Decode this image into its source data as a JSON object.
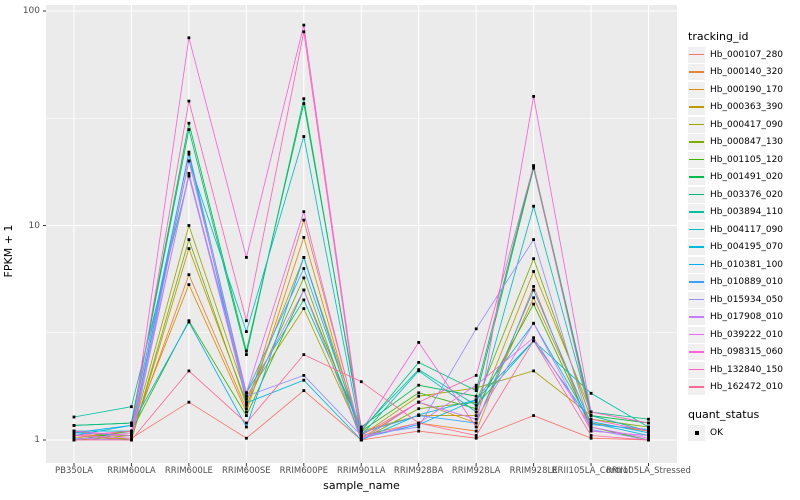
{
  "figure": {
    "background": "#ffffff",
    "panel_background": "#ebebeb",
    "grid_color": "#ffffff",
    "tick_text_color": "#4d4d4d",
    "axis_title_color": "#000000"
  },
  "axes": {
    "x_title": "sample_name",
    "y_title": "FPKM + 1",
    "y_tick_labels": [
      "1",
      "10",
      "100"
    ],
    "y_tick_values": [
      1,
      10,
      100
    ],
    "y_minor_values": [
      3.1623,
      31.623
    ]
  },
  "legend": {
    "tracking_title": "tracking_id",
    "quant_title": "quant_status",
    "quant_entries": [
      {
        "label": "OK",
        "marker": "black-square"
      }
    ]
  },
  "chart_data": {
    "type": "line",
    "title": "",
    "xlabel": "sample_name",
    "ylabel": "FPKM + 1",
    "y_scale": "log10",
    "ylim": [
      1,
      100
    ],
    "grid": true,
    "legend_position": "right",
    "point_marker": "small black square (quant_status OK)",
    "categories": [
      "PB350LA",
      "RRIM600LA",
      "RRIM600LE",
      "RRIM600SE",
      "RRIM600PE",
      "RRIM901LA",
      "RRIM928BA",
      "RRIM928LA",
      "RRIM928LE",
      "RRII105LA_Control",
      "RRII105LA_Stressed"
    ],
    "series": [
      {
        "name": "Hb_000107_280",
        "color": "#F8766D",
        "values": [
          1.0,
          1.02,
          1.5,
          1.02,
          1.7,
          1.0,
          1.1,
          1.02,
          1.3,
          1.02,
          1.0
        ]
      },
      {
        "name": "Hb_000140_320",
        "color": "#EA8331",
        "values": [
          1.05,
          1.05,
          5.9,
          1.4,
          10.6,
          1.05,
          1.2,
          1.1,
          5.2,
          1.1,
          1.05
        ]
      },
      {
        "name": "Hb_000190_170",
        "color": "#D89000",
        "values": [
          1.02,
          1.1,
          5.3,
          1.35,
          8.8,
          1.02,
          1.5,
          1.2,
          4.6,
          1.2,
          1.1
        ]
      },
      {
        "name": "Hb_000363_390",
        "color": "#C09B00",
        "values": [
          1.05,
          1.0,
          7.8,
          1.5,
          7.1,
          1.1,
          1.3,
          1.3,
          6.1,
          1.35,
          1.2
        ]
      },
      {
        "name": "Hb_000417_090",
        "color": "#A3A500",
        "values": [
          1.0,
          1.05,
          10.0,
          1.6,
          4.1,
          1.05,
          1.6,
          1.75,
          2.1,
          1.3,
          1.1
        ]
      },
      {
        "name": "Hb_000847_130",
        "color": "#7CAE00",
        "values": [
          1.1,
          1.0,
          8.6,
          1.45,
          5.7,
          1.0,
          1.4,
          1.5,
          7.0,
          1.25,
          1.15
        ]
      },
      {
        "name": "Hb_001105_120",
        "color": "#39B600",
        "values": [
          1.0,
          1.1,
          3.6,
          1.3,
          5.0,
          1.1,
          1.66,
          1.4,
          4.3,
          1.15,
          1.0
        ]
      },
      {
        "name": "Hb_001491_020",
        "color": "#00BB4E",
        "values": [
          1.17,
          1.2,
          30.0,
          2.6,
          37.0,
          1.15,
          1.8,
          1.6,
          18.5,
          1.3,
          1.2
        ]
      },
      {
        "name": "Hb_003376_020",
        "color": "#00BF7D",
        "values": [
          1.17,
          1.2,
          28.0,
          2.5,
          39.0,
          1.1,
          2.3,
          1.7,
          19.0,
          1.35,
          1.25
        ]
      },
      {
        "name": "Hb_003894_110",
        "color": "#00C1A3",
        "values": [
          1.28,
          1.43,
          17.0,
          1.66,
          4.5,
          1.12,
          2.13,
          1.45,
          2.9,
          1.65,
          1.15
        ]
      },
      {
        "name": "Hb_004117_090",
        "color": "#00BFC4",
        "values": [
          1.1,
          1.1,
          20.0,
          3.2,
          26.0,
          1.05,
          2.1,
          1.35,
          12.3,
          1.3,
          1.1
        ]
      },
      {
        "name": "Hb_004195_070",
        "color": "#00BAE0",
        "values": [
          1.05,
          1.17,
          21.5,
          1.49,
          1.9,
          1.0,
          1.31,
          1.54,
          3.5,
          1.2,
          1.05
        ]
      },
      {
        "name": "Hb_010381_100",
        "color": "#00B0F6",
        "values": [
          1.08,
          1.17,
          3.55,
          1.15,
          7.1,
          1.02,
          1.18,
          1.54,
          2.9,
          1.22,
          1.08
        ]
      },
      {
        "name": "Hb_010889_010",
        "color": "#35A2FF",
        "values": [
          1.08,
          1.05,
          22.0,
          1.66,
          6.3,
          1.08,
          1.3,
          1.2,
          5.0,
          1.18,
          1.12
        ]
      },
      {
        "name": "Hb_015934_050",
        "color": "#9590FF",
        "values": [
          1.02,
          1.0,
          17.5,
          1.6,
          2.0,
          1.05,
          1.15,
          3.3,
          8.6,
          1.12,
          1.0
        ]
      },
      {
        "name": "Hb_017908_010",
        "color": "#C77CFF",
        "values": [
          1.0,
          1.08,
          17.0,
          1.55,
          5.0,
          1.0,
          1.5,
          1.25,
          3.5,
          1.1,
          1.05
        ]
      },
      {
        "name": "Hb_039222_010",
        "color": "#E76BF3",
        "values": [
          1.05,
          1.02,
          20.0,
          1.66,
          11.6,
          1.02,
          1.2,
          1.8,
          3.0,
          1.15,
          1.02
        ]
      },
      {
        "name": "Hb_098315_060",
        "color": "#FA62DB",
        "values": [
          1.1,
          1.05,
          75.0,
          7.1,
          86.0,
          1.1,
          2.85,
          1.15,
          40.0,
          1.35,
          1.2
        ]
      },
      {
        "name": "Hb_132840_150",
        "color": "#FF62BC",
        "values": [
          1.05,
          1.1,
          38.0,
          3.6,
          80.0,
          1.05,
          1.5,
          2.0,
          19.0,
          1.25,
          1.1
        ]
      },
      {
        "name": "Hb_162472_010",
        "color": "#FF6A98",
        "values": [
          1.0,
          1.0,
          2.1,
          1.2,
          2.5,
          1.87,
          1.2,
          1.05,
          2.9,
          1.05,
          1.0
        ]
      }
    ]
  }
}
